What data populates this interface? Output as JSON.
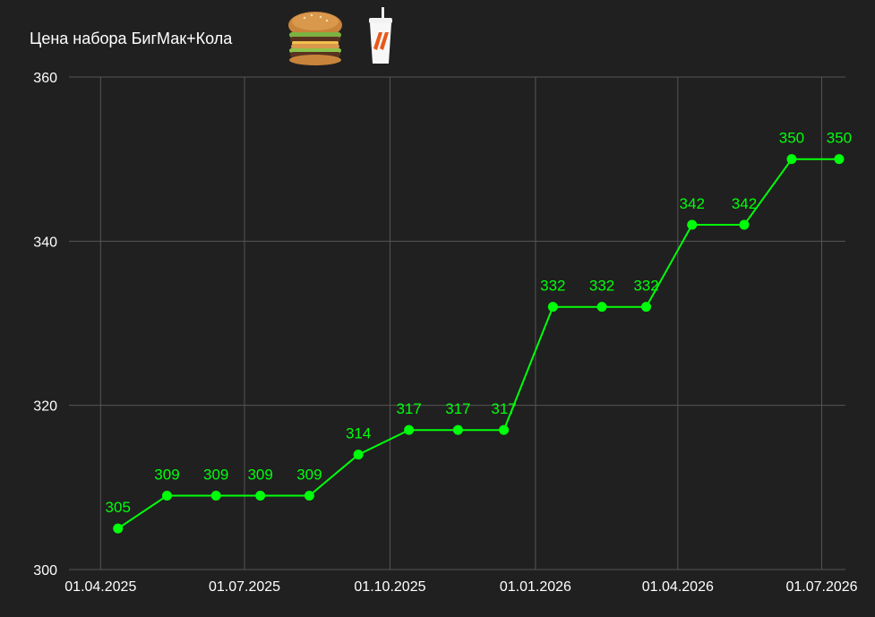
{
  "chart_data": {
    "type": "line",
    "title": "Цена набора БигМак+Кола",
    "title_icons": [
      "burger-icon",
      "cola-cup-icon"
    ],
    "xlabel": "",
    "ylabel": "",
    "ylim": [
      300,
      360
    ],
    "y_ticks": [
      300,
      320,
      340,
      360
    ],
    "x_tick_labels": [
      "01.04.2025",
      "01.07.2025",
      "01.10.2025",
      "01.01.2026",
      "01.04.2026",
      "01.07.2026"
    ],
    "x_tick_dates": [
      "2025-04-01",
      "2025-07-01",
      "2025-10-01",
      "2026-01-01",
      "2026-04-01",
      "2026-07-01"
    ],
    "x_range": [
      "2025-03-12",
      "2026-07-16"
    ],
    "grid": true,
    "line_color": "#00ff0a",
    "text_color": "#ffffff",
    "background": "#202020",
    "series": [
      {
        "x": [
          "2025-04-12",
          "2025-05-13",
          "2025-06-13",
          "2025-07-11",
          "2025-08-11",
          "2025-09-11",
          "2025-10-13",
          "2025-11-13",
          "2025-12-12",
          "2026-01-12",
          "2026-02-12",
          "2026-03-12",
          "2026-04-10",
          "2026-05-13",
          "2026-06-12",
          "2026-07-12"
        ],
        "values": [
          305,
          309,
          309,
          309,
          309,
          314,
          317,
          317,
          317,
          332,
          332,
          332,
          342,
          342,
          350,
          350
        ]
      }
    ]
  }
}
